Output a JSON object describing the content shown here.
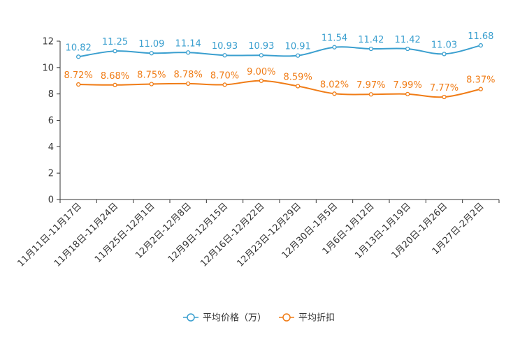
{
  "chart_data": {
    "type": "line",
    "title": "",
    "xlabel": "",
    "ylabel": "",
    "ylim": [
      0,
      12
    ],
    "yticks": [
      "0",
      "2",
      "4",
      "6",
      "8",
      "10",
      "12"
    ],
    "grid": false,
    "legend_position": "bottom-center",
    "categories": [
      "11月11日-11月17日",
      "11月18日-11月24日",
      "11月25日-12月1日",
      "12月2日-12月8日",
      "12月9日-12月15日",
      "12月16日-12月22日",
      "12月23日-12月29日",
      "12月30日-1月5日",
      "1月6日-1月12日",
      "1月13日-1月19日",
      "1月20日-1月26日",
      "1月27日-2月2日"
    ],
    "series": [
      {
        "name": "平均价格（万）",
        "color": "#3a9fcf",
        "values": [
          10.82,
          11.25,
          11.09,
          11.14,
          10.93,
          10.93,
          10.91,
          11.54,
          11.42,
          11.42,
          11.03,
          11.68
        ],
        "labels": [
          "10.82",
          "11.25",
          "11.09",
          "11.14",
          "10.93",
          "10.93",
          "10.91",
          "11.54",
          "11.42",
          "11.42",
          "11.03",
          "11.68"
        ]
      },
      {
        "name": "平均折扣",
        "color": "#f07c16",
        "values": [
          8.72,
          8.68,
          8.75,
          8.78,
          8.7,
          9.0,
          8.59,
          8.02,
          7.97,
          7.99,
          7.77,
          8.37
        ],
        "labels": [
          "8.72%",
          "8.68%",
          "8.75%",
          "8.78%",
          "8.70%",
          "9.00%",
          "8.59%",
          "8.02%",
          "7.97%",
          "7.99%",
          "7.77%",
          "8.37%"
        ]
      }
    ]
  }
}
